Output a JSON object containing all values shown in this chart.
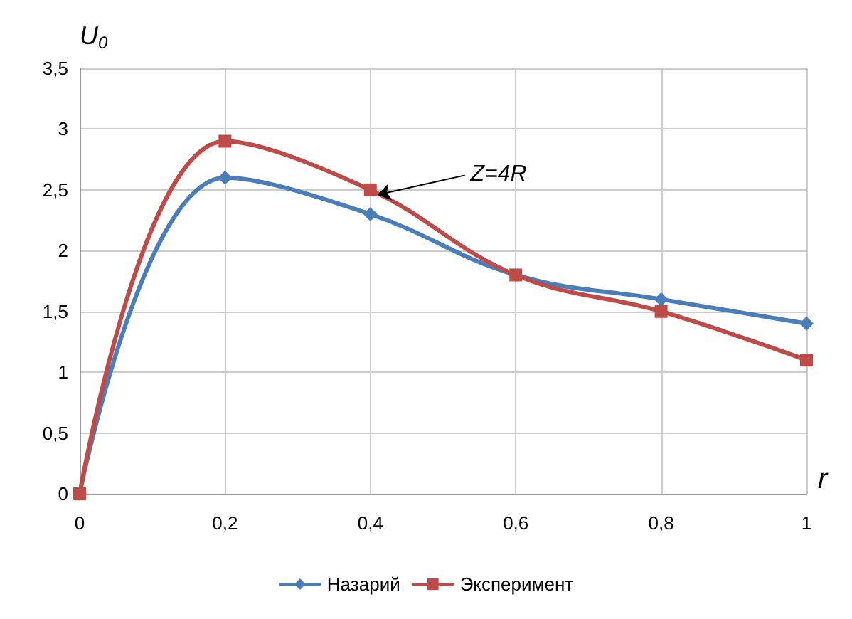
{
  "chart_data": {
    "type": "line",
    "xlabel": "r",
    "ylabel": "U$_{0}$",
    "x": [
      0,
      0.2,
      0.4,
      0.6,
      0.8,
      1
    ],
    "series": [
      {
        "name": "Назарий",
        "color": "#4a7ebb",
        "marker": "diamond",
        "values": [
          0,
          2.6,
          2.3,
          1.8,
          1.6,
          1.4
        ]
      },
      {
        "name": "Эксперимент",
        "color": "#be4b48",
        "marker": "square",
        "values": [
          0,
          2.9,
          2.5,
          1.8,
          1.5,
          1.1
        ]
      }
    ],
    "xlim": [
      0,
      1
    ],
    "xticks": [
      0,
      {
        "value": 0.2,
        "label": "0,2"
      },
      {
        "value": 0.4,
        "label": "0,4"
      },
      {
        "value": 0.6,
        "label": "0,6"
      },
      {
        "value": 0.8,
        "label": "0,8"
      },
      1
    ],
    "ylim": [
      0,
      3.5
    ],
    "yticks": [
      0,
      {
        "value": 0.5,
        "label": "0,5"
      },
      1,
      {
        "value": 1.5,
        "label": "1,5"
      },
      2,
      {
        "value": 2.5,
        "label": "2,5"
      },
      3,
      {
        "value": 3.5,
        "label": "3,5"
      }
    ],
    "annotations": [
      {
        "text": "Z=4R",
        "x": 0.4,
        "y": 2.5
      }
    ],
    "grid": true,
    "legend": "bottom",
    "line_style": "solid"
  }
}
